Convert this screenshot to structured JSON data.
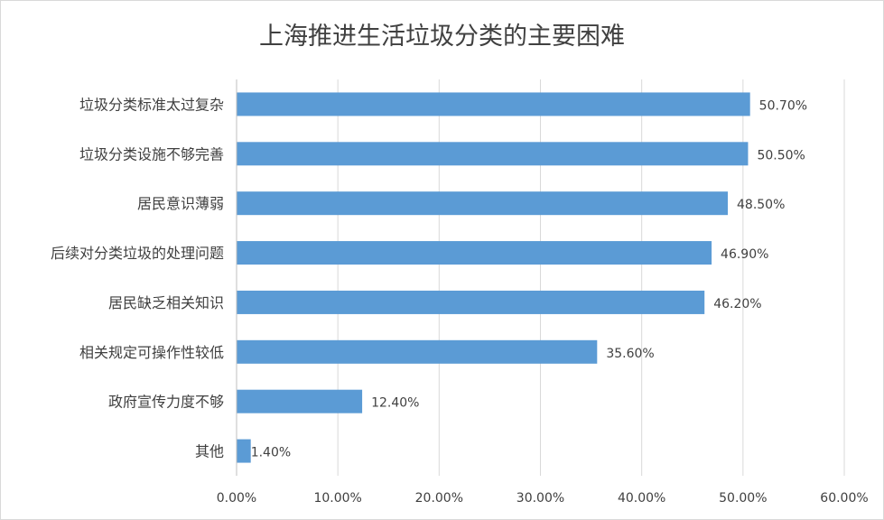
{
  "chart_data": {
    "type": "bar",
    "orientation": "horizontal",
    "title": "上海推进生活垃圾分类的主要困难",
    "categories": [
      "垃圾分类标准太过复杂",
      "垃圾分类设施不够完善",
      "居民意识薄弱",
      "后续对分类垃圾的处理问题",
      "居民缺乏相关知识",
      "相关规定可操作性较低",
      "政府宣传力度不够",
      "其他"
    ],
    "values": [
      50.7,
      50.5,
      48.5,
      46.9,
      46.2,
      35.6,
      12.4,
      1.4
    ],
    "value_labels": [
      "50.70%",
      "50.50%",
      "48.50%",
      "46.90%",
      "46.20%",
      "35.60%",
      "12.40%",
      "1.40%"
    ],
    "xlim": [
      0,
      60
    ],
    "x_ticks": [
      0,
      10,
      20,
      30,
      40,
      50,
      60
    ],
    "x_tick_labels": [
      "0.00%",
      "10.00%",
      "20.00%",
      "30.00%",
      "40.00%",
      "50.00%",
      "60.00%"
    ],
    "grid": "vertical",
    "legend": "none",
    "bar_color": "#5b9bd5",
    "grid_color": "#d9d9d9"
  }
}
